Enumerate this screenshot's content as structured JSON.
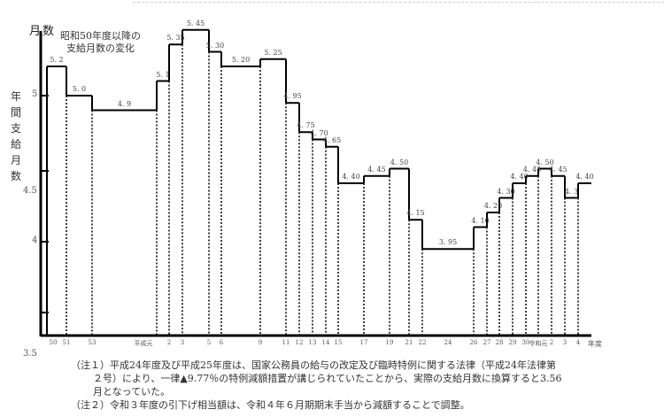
{
  "chart_data": {
    "type": "line",
    "style": "step",
    "title": "昭和50年度以降の支給月数の変化",
    "title_lines": [
      "昭和50年度以降の",
      "支給月数の変化"
    ],
    "ylabel_top": "月数",
    "ylabel": "年間支給月数",
    "xlabel": "年度",
    "y_ticks": [
      "5",
      "4.5",
      "4",
      "3.5"
    ],
    "ylim": [
      3.4,
      5.5
    ],
    "grid": false,
    "steps": [
      {
        "year": "50",
        "value": 5.2,
        "label": "5.2"
      },
      {
        "year": "51",
        "value": 5.0,
        "label": "5.0"
      },
      {
        "year": "53",
        "value": 4.9,
        "label": "4.9"
      },
      {
        "year": "平成元",
        "value": 5.1,
        "label": "5.1"
      },
      {
        "year": "2",
        "value": 5.35,
        "label": "5.35"
      },
      {
        "year": "3",
        "value": 5.45,
        "label": "5.45"
      },
      {
        "year": "5",
        "value": 5.3,
        "label": "5.30"
      },
      {
        "year": "6",
        "value": 5.2,
        "label": "5.20"
      },
      {
        "year": "9",
        "value": 5.25,
        "label": "5.25"
      },
      {
        "year": "11",
        "value": 4.95,
        "label": "4.95"
      },
      {
        "year": "12",
        "value": 4.75,
        "label": "4.75"
      },
      {
        "year": "13",
        "value": 4.7,
        "label": "4.70"
      },
      {
        "year": "14",
        "value": 4.65,
        "label": "4.65"
      },
      {
        "year": "15",
        "value": 4.4,
        "label": "4.40"
      },
      {
        "year": "17",
        "value": 4.45,
        "label": "4.45"
      },
      {
        "year": "19",
        "value": 4.5,
        "label": "4.50"
      },
      {
        "year": "21",
        "value": 4.15,
        "label": "4.15"
      },
      {
        "year": "22",
        "value": 3.95,
        "label": "3.95"
      },
      {
        "year": "26",
        "value": 4.1,
        "label": "4.10"
      },
      {
        "year": "27",
        "value": 4.2,
        "label": "4.20"
      },
      {
        "year": "28",
        "value": 4.3,
        "label": "4.30"
      },
      {
        "year": "29",
        "value": 4.4,
        "label": "4.40"
      },
      {
        "year": "30",
        "value": 4.45,
        "label": "4.45"
      },
      {
        "year": "令和元",
        "value": 4.5,
        "label": "4.50"
      },
      {
        "year": "2",
        "value": 4.45,
        "label": "4.45"
      },
      {
        "year": "3",
        "value": 4.3,
        "label": "4.3"
      },
      {
        "year": "4",
        "value": 4.4,
        "label": "4.40"
      }
    ],
    "extra_x_ticks": [
      "24"
    ]
  },
  "notes": [
    "（注１）平成24年度及び平成25年度は、国家公務員の給与の改定及び臨時特例に関する法律（平成24年法律第",
    "２号）により、一律▲9.77％の特例減額措置が講じられていたことから、実際の支給月数に換算すると3.56",
    "月となっていた。",
    "（注２）令和３年度の引下げ相当額は、令和４年６月期期末手当から減額することで調整。"
  ]
}
